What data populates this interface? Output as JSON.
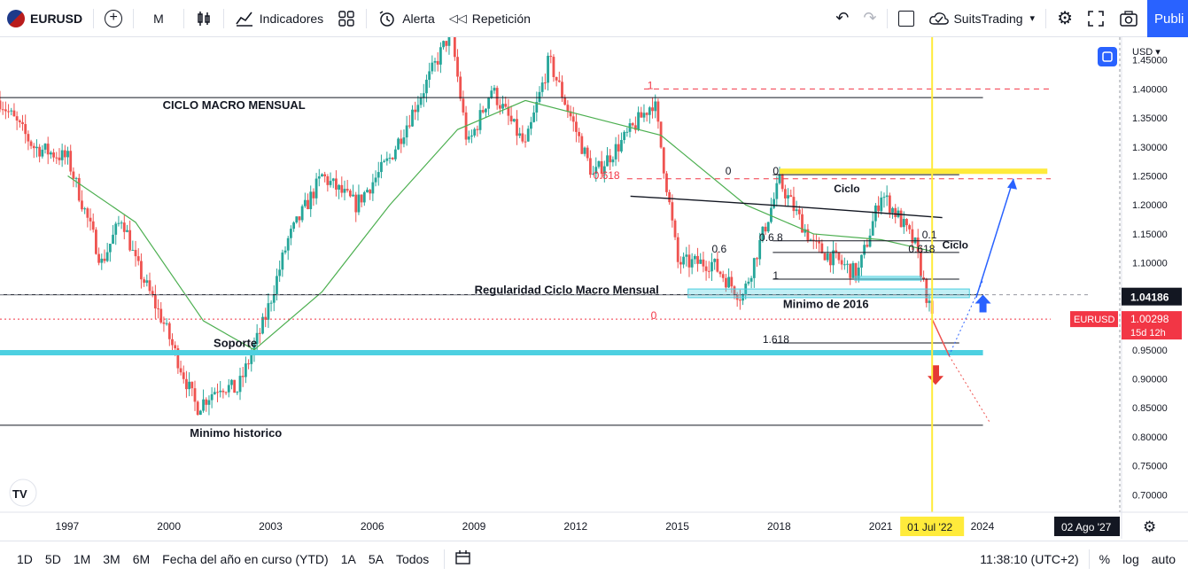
{
  "toolbar": {
    "symbol": "EURUSD",
    "interval": "M",
    "indicators_label": "Indicadores",
    "alert_label": "Alerta",
    "replay_label": "Repetición",
    "layout_name": "SuitsTrading",
    "publish_label": "Publi"
  },
  "bottombar": {
    "ranges": [
      "1D",
      "5D",
      "1M",
      "3M",
      "6M",
      "Fecha del año en curso (YTD)",
      "1A",
      "5A",
      "Todos"
    ],
    "clock": "11:38:10 (UTC+2)",
    "percent_label": "%",
    "log_label": "log",
    "auto_label": "auto"
  },
  "chart_data": {
    "type": "candlestick",
    "symbol": "EURUSD",
    "currency": "USD",
    "x_ticks": [
      "1997",
      "2000",
      "2003",
      "2006",
      "2009",
      "2012",
      "2015",
      "2018",
      "2021",
      "2024"
    ],
    "x_range": [
      1995.0,
      2027.2
    ],
    "y_ticks": [
      "1.45000",
      "1.40000",
      "1.35000",
      "1.30000",
      "1.25000",
      "1.20000",
      "1.15000",
      "1.10000",
      "1.05000",
      "0.95000",
      "0.90000",
      "0.85000",
      "0.80000",
      "0.75000",
      "0.70000"
    ],
    "y_range": [
      0.67,
      1.48
    ],
    "last_price": "1.00298",
    "last_price_countdown": "15d 12h",
    "crosshair_price": "1.04186",
    "crosshair_date": "01 Jul '22",
    "right_edge_date": "02 Ago '27",
    "ohlc_path": [
      [
        1995.0,
        1.38
      ],
      [
        1996.0,
        1.3
      ],
      [
        1997.0,
        1.28
      ],
      [
        1998.0,
        1.1
      ],
      [
        1998.6,
        1.18
      ],
      [
        1999.0,
        1.1
      ],
      [
        1999.8,
        1.0
      ],
      [
        2000.8,
        0.85
      ],
      [
        2001.5,
        0.89
      ],
      [
        2002.0,
        0.88
      ],
      [
        2002.8,
        1.0
      ],
      [
        2003.5,
        1.14
      ],
      [
        2004.5,
        1.25
      ],
      [
        2005.5,
        1.2
      ],
      [
        2006.5,
        1.28
      ],
      [
        2007.5,
        1.4
      ],
      [
        2008.3,
        1.5
      ],
      [
        2008.8,
        1.3
      ],
      [
        2009.5,
        1.4
      ],
      [
        2010.5,
        1.3
      ],
      [
        2011.2,
        1.45
      ],
      [
        2012.5,
        1.25
      ],
      [
        2013.5,
        1.32
      ],
      [
        2014.3,
        1.38
      ],
      [
        2015.0,
        1.1
      ],
      [
        2016.0,
        1.1
      ],
      [
        2016.9,
        1.04
      ],
      [
        2018.0,
        1.24
      ],
      [
        2019.0,
        1.13
      ],
      [
        2020.3,
        1.08
      ],
      [
        2021.0,
        1.22
      ],
      [
        2021.5,
        1.18
      ],
      [
        2022.0,
        1.13
      ],
      [
        2022.5,
        1.0
      ]
    ],
    "moving_average_path": [
      [
        1997.0,
        1.25
      ],
      [
        1999.0,
        1.17
      ],
      [
        2001.0,
        1.0
      ],
      [
        2002.5,
        0.95
      ],
      [
        2004.5,
        1.05
      ],
      [
        2006.5,
        1.2
      ],
      [
        2008.5,
        1.33
      ],
      [
        2010.5,
        1.38
      ],
      [
        2012.5,
        1.35
      ],
      [
        2014.5,
        1.32
      ],
      [
        2017.0,
        1.2
      ],
      [
        2019.0,
        1.15
      ],
      [
        2021.0,
        1.14
      ],
      [
        2022.5,
        1.12
      ]
    ],
    "horizontal_lines": [
      {
        "price": 1.385,
        "from": 1995.0,
        "to": 2024.0,
        "color": "#131722",
        "style": "solid"
      },
      {
        "price": 1.045,
        "from": 1995.0,
        "to": 2024.0,
        "color": "#131722",
        "style": "solid"
      },
      {
        "price": 0.82,
        "from": 1995.0,
        "to": 2024.0,
        "color": "#131722",
        "style": "solid"
      },
      {
        "price": 0.945,
        "from": 1995.0,
        "to": 2024.0,
        "color": "#4dd0e1",
        "style": "thick"
      },
      {
        "price": 1.4,
        "from": 2014.0,
        "to": 2026.0,
        "color": "#f23645",
        "style": "dashed"
      },
      {
        "price": 1.245,
        "from": 2013.5,
        "to": 2026.0,
        "color": "#f23645",
        "style": "dashed"
      },
      {
        "price": 1.003,
        "from": 1995.0,
        "to": 2026.0,
        "color": "#f23645",
        "style": "dotted"
      }
    ],
    "fib_levels": [
      {
        "label": "0",
        "price": 1.252
      },
      {
        "label": "0.618",
        "price": 1.138
      },
      {
        "label": "0.6",
        "price": 1.118
      },
      {
        "label": "1",
        "price": 1.072
      },
      {
        "label": "1.618",
        "price": 0.962
      }
    ],
    "yellow_zone_price": 1.258,
    "annotations": [
      {
        "text": "CICLO MACRO MENSUAL",
        "x": 1999.8,
        "price": 1.365
      },
      {
        "text": "Regularidad Ciclo Macro Mensual",
        "x": 2009.0,
        "price": 1.047
      },
      {
        "text": "Minimo de 2016",
        "x": 2018.1,
        "price": 1.022
      },
      {
        "text": "Soporte",
        "x": 2001.3,
        "price": 0.955
      },
      {
        "text": "Minimo historico",
        "x": 2000.6,
        "price": 0.8
      },
      {
        "text": "Ciclo",
        "x": 2019.6,
        "price": 1.222
      },
      {
        "text": "Ciclo",
        "x": 2022.8,
        "price": 1.125
      },
      {
        "text": "0",
        "x": 2016.4,
        "price": 1.252
      },
      {
        "text": "0",
        "x": 2017.8,
        "price": 1.252
      },
      {
        "text": "0.618",
        "x": 2012.5,
        "price": 1.245
      },
      {
        "text": "1",
        "x": 2014.1,
        "price": 1.4
      },
      {
        "text": "0.6 8",
        "x": 2017.4,
        "price": 1.138
      },
      {
        "text": "0.6",
        "x": 2016.0,
        "price": 1.118
      },
      {
        "text": "0.618",
        "x": 2021.8,
        "price": 1.118
      },
      {
        "text": "0.1",
        "x": 2022.2,
        "price": 1.142
      },
      {
        "text": "1",
        "x": 2017.8,
        "price": 1.072
      },
      {
        "text": "1.618",
        "x": 2017.5,
        "price": 0.962
      },
      {
        "text": "0",
        "x": 2014.2,
        "price": 1.003
      }
    ]
  },
  "colors": {
    "up": "#26a69a",
    "down": "#ef5350",
    "ma": "#4caf50",
    "accent": "#2962ff",
    "cursor_line": "#ffeb3b",
    "support_zone": "#4dd0e1",
    "price_label": "#f23645"
  }
}
